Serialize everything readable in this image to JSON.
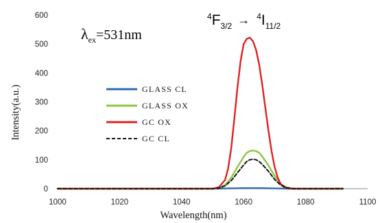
{
  "chart_data": {
    "type": "line",
    "title": "",
    "xlabel": "Wavelength(nm)",
    "ylabel": "Intensity(a.u.)",
    "xlim": [
      1000,
      1100
    ],
    "ylim": [
      0,
      600
    ],
    "x_ticks": [
      "1000",
      "1020",
      "1040",
      "1060",
      "1080",
      "1100"
    ],
    "y_ticks": [
      "0",
      "100",
      "200",
      "300",
      "400",
      "500",
      "600"
    ],
    "grid": false,
    "legend_position": "center-left",
    "series": [
      {
        "name": "GLASS CL",
        "color": "#2e6ab0",
        "dash": "solid",
        "x": [
          1000,
          1050,
          1055,
          1060,
          1065,
          1070,
          1075,
          1092
        ],
        "y": [
          0,
          0,
          1,
          2,
          2,
          1,
          0,
          0
        ]
      },
      {
        "name": "GLASS OX",
        "color": "#8cc63f",
        "dash": "solid",
        "x": [
          1000,
          1050,
          1052,
          1054,
          1056,
          1058,
          1060,
          1061,
          1062,
          1063,
          1064,
          1065,
          1066,
          1068,
          1070,
          1072,
          1074,
          1076,
          1092
        ],
        "y": [
          0,
          0,
          3,
          12,
          38,
          75,
          110,
          124,
          130,
          132,
          130,
          124,
          112,
          80,
          44,
          16,
          4,
          0,
          0
        ]
      },
      {
        "name": "GC OX",
        "color": "#e02020",
        "dash": "solid",
        "x": [
          1000,
          1050,
          1052,
          1054,
          1055,
          1056,
          1057,
          1058,
          1059,
          1060,
          1061,
          1062,
          1063,
          1064,
          1065,
          1066,
          1067,
          1068,
          1069,
          1070,
          1071,
          1072,
          1073,
          1074,
          1076,
          1092
        ],
        "y": [
          0,
          0,
          5,
          30,
          70,
          140,
          240,
          350,
          440,
          500,
          518,
          522,
          510,
          480,
          430,
          360,
          280,
          200,
          130,
          75,
          38,
          16,
          6,
          2,
          0,
          0
        ]
      },
      {
        "name": "GC CL",
        "color": "#111111",
        "dash": "dashed",
        "x": [
          1000,
          1050,
          1052,
          1054,
          1056,
          1058,
          1060,
          1061,
          1062,
          1063,
          1064,
          1065,
          1066,
          1068,
          1070,
          1072,
          1074,
          1076,
          1092
        ],
        "y": [
          0,
          0,
          2,
          10,
          28,
          55,
          82,
          94,
          100,
          102,
          100,
          94,
          84,
          60,
          32,
          12,
          3,
          0,
          0
        ]
      }
    ],
    "annotations": {
      "excitation": {
        "lambda_symbol": "λ",
        "subscript": "ex",
        "value": "=531nm"
      },
      "transition": {
        "from_superscript": "4",
        "from_symbol": "F",
        "from_subscript": "3/2",
        "arrow": "→",
        "to_superscript": "4",
        "to_symbol": "I",
        "to_subscript": "11/2"
      }
    }
  }
}
